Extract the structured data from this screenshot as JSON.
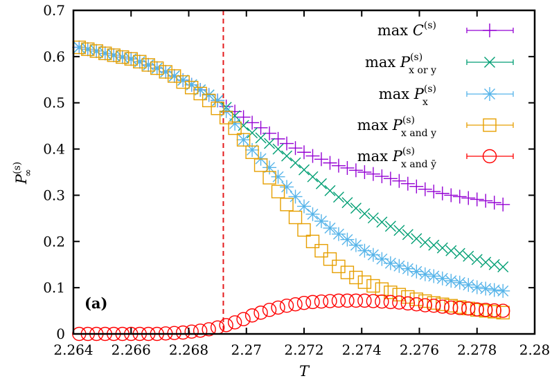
{
  "chart_data": {
    "type": "scatter",
    "xlabel": "T",
    "ylabel": {
      "symbol": "P",
      "sub": "∞",
      "sup": "(s)"
    },
    "xlim": [
      2.264,
      2.28
    ],
    "ylim": [
      0,
      0.7
    ],
    "xticks": [
      "2.264",
      "2.266",
      "2.268",
      "2.27",
      "2.272",
      "2.274",
      "2.276",
      "2.278",
      "2.28"
    ],
    "yticks": [
      "0",
      "0.1",
      "0.2",
      "0.3",
      "0.4",
      "0.5",
      "0.6",
      "0.7"
    ],
    "grid": false,
    "legend_position": "top-right",
    "annotation": "(a)",
    "vertical_line": {
      "x": 2.2692,
      "style": "dashed",
      "color": "#e41a1c"
    },
    "x": [
      2.2642,
      2.2645,
      2.2648,
      2.2651,
      2.2654,
      2.2657,
      2.266,
      2.2663,
      2.2666,
      2.2669,
      2.2672,
      2.2675,
      2.2678,
      2.2681,
      2.2684,
      2.2687,
      2.269,
      2.2693,
      2.2696,
      2.2699,
      2.2702,
      2.2705,
      2.2708,
      2.2711,
      2.2714,
      2.2717,
      2.272,
      2.2723,
      2.2726,
      2.2729,
      2.2732,
      2.2735,
      2.2738,
      2.2741,
      2.2744,
      2.2747,
      2.275,
      2.2753,
      2.2756,
      2.2759,
      2.2762,
      2.2765,
      2.2768,
      2.2771,
      2.2774,
      2.2777,
      2.278,
      2.2783,
      2.2786,
      2.2789
    ],
    "series": [
      {
        "name": {
          "prefix": "max",
          "symbol": "C",
          "sup": "(s)",
          "sub": ""
        },
        "marker": "plus",
        "color": "#9400d3",
        "values": [
          0.62,
          0.616,
          0.612,
          0.607,
          0.603,
          0.599,
          0.595,
          0.589,
          0.582,
          0.575,
          0.567,
          0.558,
          0.549,
          0.539,
          0.528,
          0.517,
          0.505,
          0.492,
          0.481,
          0.469,
          0.457,
          0.446,
          0.434,
          0.422,
          0.412,
          0.402,
          0.393,
          0.385,
          0.378,
          0.37,
          0.364,
          0.359,
          0.354,
          0.35,
          0.346,
          0.341,
          0.336,
          0.331,
          0.325,
          0.319,
          0.313,
          0.308,
          0.304,
          0.3,
          0.297,
          0.294,
          0.291,
          0.288,
          0.284,
          0.28
        ]
      },
      {
        "name": {
          "prefix": "max",
          "symbol": "P",
          "sup": "(s)",
          "sub": "x or y"
        },
        "marker": "cross",
        "color": "#009e73",
        "values": [
          0.62,
          0.616,
          0.612,
          0.607,
          0.603,
          0.599,
          0.595,
          0.589,
          0.582,
          0.575,
          0.567,
          0.558,
          0.549,
          0.539,
          0.528,
          0.517,
          0.505,
          0.49,
          0.472,
          0.451,
          0.435,
          0.424,
          0.412,
          0.4,
          0.385,
          0.37,
          0.355,
          0.34,
          0.325,
          0.31,
          0.296,
          0.284,
          0.272,
          0.26,
          0.251,
          0.242,
          0.233,
          0.224,
          0.215,
          0.206,
          0.198,
          0.192,
          0.186,
          0.18,
          0.174,
          0.168,
          0.161,
          0.155,
          0.15,
          0.145
        ]
      },
      {
        "name": {
          "prefix": "max",
          "symbol": "P",
          "sup": "(s)",
          "sub": "x"
        },
        "marker": "star",
        "color": "#56b4e9",
        "values": [
          0.62,
          0.616,
          0.612,
          0.607,
          0.603,
          0.599,
          0.595,
          0.589,
          0.582,
          0.575,
          0.567,
          0.558,
          0.549,
          0.539,
          0.528,
          0.517,
          0.505,
          0.482,
          0.455,
          0.42,
          0.398,
          0.379,
          0.36,
          0.34,
          0.318,
          0.297,
          0.276,
          0.259,
          0.244,
          0.229,
          0.216,
          0.204,
          0.192,
          0.18,
          0.171,
          0.162,
          0.153,
          0.147,
          0.141,
          0.135,
          0.129,
          0.125,
          0.12,
          0.115,
          0.111,
          0.106,
          0.101,
          0.098,
          0.095,
          0.093
        ]
      },
      {
        "name": {
          "prefix": "max",
          "symbol": "P",
          "sup": "(s)",
          "sub": "x and y"
        },
        "marker": "square",
        "color": "#e69f00",
        "values": [
          0.62,
          0.616,
          0.612,
          0.607,
          0.603,
          0.599,
          0.595,
          0.589,
          0.582,
          0.575,
          0.567,
          0.558,
          0.545,
          0.533,
          0.52,
          0.505,
          0.488,
          0.468,
          0.445,
          0.42,
          0.393,
          0.365,
          0.338,
          0.308,
          0.28,
          0.252,
          0.225,
          0.2,
          0.18,
          0.162,
          0.146,
          0.133,
          0.122,
          0.112,
          0.104,
          0.097,
          0.09,
          0.085,
          0.08,
          0.075,
          0.071,
          0.067,
          0.064,
          0.061,
          0.058,
          0.055,
          0.052,
          0.05,
          0.048,
          0.046
        ]
      },
      {
        "name": {
          "prefix": "max",
          "symbol": "P",
          "sup": "(s)",
          "sub": "x and ȳ"
        },
        "marker": "circle",
        "color": "#ff0000",
        "values": [
          0,
          0,
          0,
          0,
          0,
          0,
          0,
          0,
          0,
          0,
          0.001,
          0.002,
          0.003,
          0.005,
          0.007,
          0.01,
          0.014,
          0.019,
          0.025,
          0.032,
          0.04,
          0.046,
          0.052,
          0.057,
          0.061,
          0.064,
          0.067,
          0.069,
          0.07,
          0.071,
          0.072,
          0.072,
          0.072,
          0.072,
          0.071,
          0.07,
          0.069,
          0.068,
          0.066,
          0.064,
          0.062,
          0.061,
          0.059,
          0.057,
          0.056,
          0.055,
          0.053,
          0.052,
          0.051,
          0.05
        ]
      }
    ]
  }
}
